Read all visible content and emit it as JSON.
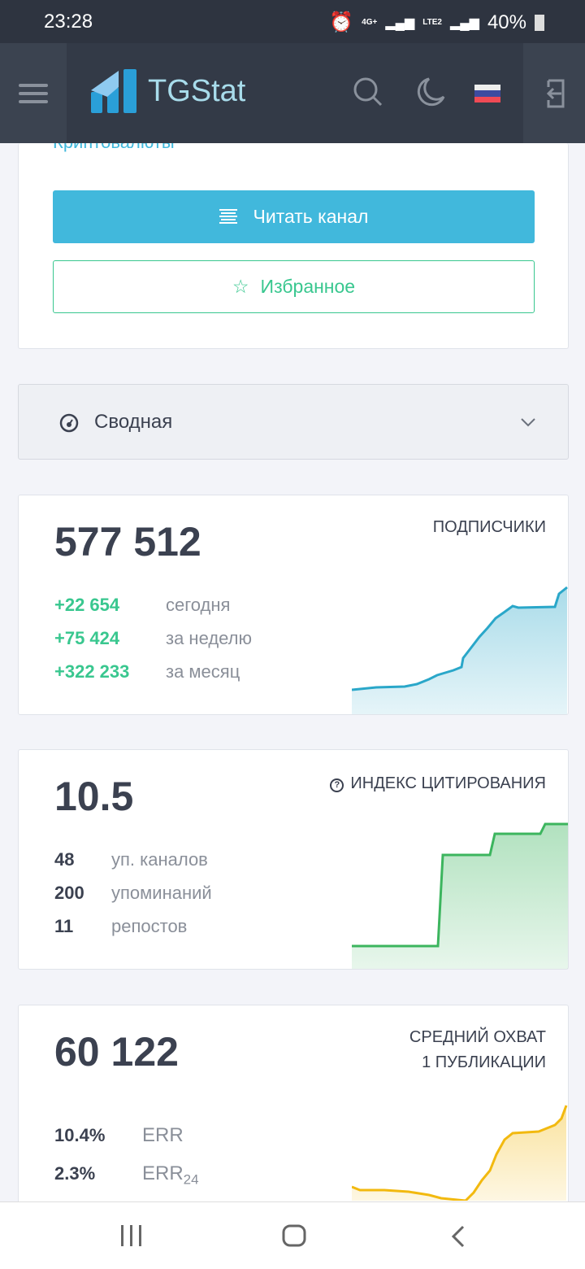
{
  "status_bar": {
    "time": "23:28",
    "network1": "4G+",
    "network2": "LTE2",
    "battery": "40%"
  },
  "header": {
    "brand": "TGStat",
    "icons": [
      "menu-icon",
      "search-icon",
      "moon-icon",
      "russia-flag-icon",
      "login-icon"
    ]
  },
  "channel_card": {
    "category": "Криптовалюты",
    "read_button": "Читать канал",
    "favorite_button": "Избранное"
  },
  "section": {
    "label": "Сводная"
  },
  "subscribers": {
    "value": "577 512",
    "label": "ПОДПИСЧИКИ",
    "rows": [
      {
        "value": "+22 654",
        "text": "сегодня"
      },
      {
        "value": "+75 424",
        "text": "за неделю"
      },
      {
        "value": "+322 233",
        "text": "за месяц"
      }
    ],
    "color": "#2aa7c9"
  },
  "citation": {
    "value": "10.5",
    "label": "ИНДЕКС ЦИТИРОВАНИЯ",
    "rows": [
      {
        "value": "48",
        "text": "уп. каналов"
      },
      {
        "value": "200",
        "text": "упоминаний"
      },
      {
        "value": "11",
        "text": "репостов"
      }
    ],
    "color": "#3cb55e"
  },
  "reach": {
    "value": "60 122",
    "label_line1": "СРЕДНИЙ ОХВАТ",
    "label_line2": "1 ПУБЛИКАЦИИ",
    "rows": [
      {
        "value": "10.4%",
        "text": "ERR"
      },
      {
        "value": "2.3%",
        "text": "ERR",
        "sub": "24"
      }
    ],
    "color": "#f2b90f"
  }
}
